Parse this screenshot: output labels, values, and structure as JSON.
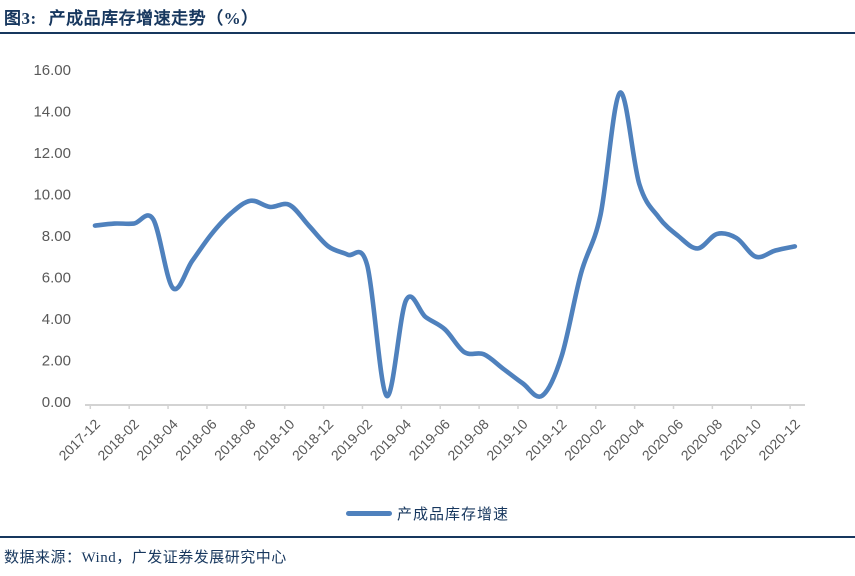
{
  "header": {
    "figure_label": "图3:",
    "title": "产成品库存增速走势（%）"
  },
  "footer": {
    "source_text": "数据来源：Wind，广发证券发展研究中心"
  },
  "colors": {
    "line": "#4F81BD",
    "navy": "#17375E",
    "axis_text": "#595959",
    "axis_line": "#D3D3D3"
  },
  "chart_data": {
    "type": "line",
    "title": "产成品库存增速走势（%）",
    "xlabel": "",
    "ylabel": "",
    "ylim": [
      0,
      16
    ],
    "ytick_step": 2,
    "ytick_labels": [
      "0.00",
      "2.00",
      "4.00",
      "6.00",
      "8.00",
      "10.00",
      "12.00",
      "14.00",
      "16.00"
    ],
    "grid": false,
    "smooth": true,
    "legend_position": "bottom",
    "legend": [
      {
        "label": "产成品库存增速",
        "color": "#4F81BD"
      }
    ],
    "x": [
      "2017-12",
      "2018-01",
      "2018-02",
      "2018-03",
      "2018-04",
      "2018-05",
      "2018-06",
      "2018-07",
      "2018-08",
      "2018-09",
      "2018-10",
      "2018-11",
      "2018-12",
      "2019-01",
      "2019-02",
      "2019-03",
      "2019-04",
      "2019-05",
      "2019-06",
      "2019-07",
      "2019-08",
      "2019-09",
      "2019-10",
      "2019-11",
      "2019-12",
      "2020-01",
      "2020-02",
      "2020-03",
      "2020-04",
      "2020-05",
      "2020-06",
      "2020-07",
      "2020-08",
      "2020-09",
      "2020-10",
      "2020-11",
      "2020-12"
    ],
    "x_tick_labels": [
      "2017-12",
      "2018-02",
      "2018-04",
      "2018-06",
      "2018-08",
      "2018-10",
      "2018-12",
      "2019-02",
      "2019-04",
      "2019-06",
      "2019-08",
      "2019-10",
      "2019-12",
      "2020-02",
      "2020-04",
      "2020-06",
      "2020-08",
      "2020-10",
      "2020-12"
    ],
    "series": [
      {
        "name": "产成品库存增速",
        "color": "#4F81BD",
        "values": [
          8.5,
          8.6,
          8.6,
          8.8,
          5.5,
          6.8,
          8.1,
          9.1,
          9.7,
          9.4,
          9.5,
          8.5,
          7.5,
          7.1,
          6.6,
          0.3,
          4.9,
          4.1,
          3.5,
          2.4,
          2.3,
          1.6,
          0.9,
          0.3,
          2.2,
          6.2,
          9.0,
          14.9,
          10.5,
          8.9,
          8.0,
          7.4,
          8.1,
          7.9,
          7.0,
          7.3,
          7.5
        ]
      }
    ]
  }
}
